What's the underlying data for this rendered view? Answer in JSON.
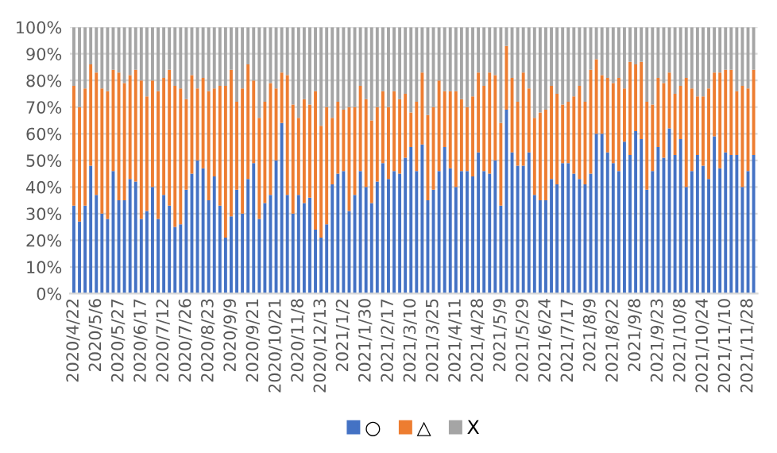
{
  "chart_data": {
    "type": "bar",
    "stacked": true,
    "categories": [
      "2020/4/22",
      null,
      null,
      null,
      "2020/5/6",
      null,
      null,
      null,
      "2020/5/27",
      null,
      null,
      null,
      "2020/6/17",
      null,
      null,
      null,
      "2020/7/12",
      null,
      null,
      null,
      "2020/7/26",
      null,
      null,
      null,
      "2020/8/23",
      null,
      null,
      null,
      "2020/9/9",
      null,
      null,
      null,
      "2020/9/21",
      null,
      null,
      null,
      "2020/10/21",
      null,
      null,
      null,
      "2020/11/8",
      null,
      null,
      null,
      "2020/12/13",
      null,
      null,
      null,
      "2021/1/2",
      null,
      null,
      null,
      "2021/1/30",
      null,
      null,
      null,
      "2021/2/17",
      null,
      null,
      null,
      "2021/3/10",
      null,
      null,
      null,
      "2021/3/25",
      null,
      null,
      null,
      "2021/4/11",
      null,
      null,
      null,
      "2021/4/28",
      null,
      null,
      null,
      "2021/5/9",
      null,
      null,
      null,
      "2021/5/29",
      null,
      null,
      null,
      "2021/6/24",
      null,
      null,
      null,
      "2021/7/17",
      null,
      null,
      null,
      "2021/8/9",
      null,
      null,
      null,
      "2021/8/22",
      null,
      null,
      null,
      "2021/9/8",
      null,
      null,
      null,
      "2021/9/23",
      null,
      null,
      null,
      "2021/10/8",
      null,
      null,
      null,
      "2021/10/24",
      null,
      null,
      null,
      "2021/11/10",
      null,
      null,
      null,
      "2021/11/28",
      null
    ],
    "series": [
      {
        "name": "○",
        "color": "#4472c4",
        "values": [
          33,
          27,
          33,
          48,
          37,
          30,
          28,
          46,
          35,
          35,
          43,
          42,
          28,
          31,
          40,
          28,
          37,
          33,
          25,
          26,
          39,
          45,
          50,
          47,
          35,
          44,
          33,
          21,
          29,
          39,
          30,
          43,
          49,
          28,
          34,
          37,
          50,
          64,
          37,
          30,
          37,
          34,
          36,
          24,
          21,
          26,
          41,
          45,
          46,
          31,
          37,
          46,
          40,
          34,
          42,
          49,
          43,
          46,
          45,
          51,
          55,
          46,
          56,
          35,
          39,
          46,
          55,
          47,
          40,
          46,
          46,
          44,
          53,
          46,
          45,
          50,
          33,
          69,
          53,
          48,
          48,
          53,
          37,
          35,
          35,
          43,
          41,
          49,
          49,
          45,
          43,
          41,
          45,
          60,
          60,
          53,
          49,
          46,
          57,
          52,
          61,
          58,
          39,
          46,
          55,
          51,
          62,
          52,
          58,
          40,
          46,
          52,
          48,
          43,
          59,
          47,
          53,
          52,
          52,
          40,
          46,
          52
        ]
      },
      {
        "name": "△",
        "color": "#ed7d31",
        "values": [
          45,
          43,
          44,
          38,
          46,
          47,
          48,
          38,
          48,
          44,
          39,
          42,
          52,
          43,
          40,
          48,
          44,
          51,
          53,
          51,
          34,
          37,
          27,
          34,
          41,
          33,
          45,
          57,
          55,
          33,
          47,
          43,
          31,
          38,
          38,
          42,
          27,
          19,
          45,
          41,
          29,
          39,
          35,
          52,
          42,
          44,
          25,
          27,
          23,
          39,
          33,
          32,
          33,
          31,
          28,
          27,
          27,
          30,
          28,
          24,
          13,
          26,
          27,
          32,
          31,
          34,
          21,
          29,
          36,
          27,
          24,
          30,
          30,
          32,
          38,
          32,
          31,
          24,
          28,
          24,
          35,
          24,
          29,
          33,
          34,
          35,
          34,
          22,
          23,
          29,
          35,
          31,
          39,
          28,
          22,
          28,
          30,
          35,
          20,
          35,
          25,
          29,
          33,
          25,
          26,
          28,
          21,
          23,
          20,
          41,
          31,
          22,
          26,
          34,
          24,
          36,
          31,
          32,
          24,
          38,
          31,
          32
        ]
      },
      {
        "name": "X",
        "color": "#a5a5a5",
        "values": [
          22,
          30,
          23,
          14,
          17,
          23,
          24,
          16,
          17,
          21,
          18,
          16,
          20,
          26,
          20,
          24,
          19,
          16,
          22,
          23,
          27,
          18,
          23,
          19,
          24,
          23,
          22,
          22,
          16,
          28,
          23,
          14,
          20,
          34,
          28,
          21,
          23,
          17,
          18,
          29,
          34,
          27,
          29,
          24,
          37,
          30,
          34,
          28,
          31,
          30,
          30,
          22,
          27,
          35,
          30,
          24,
          30,
          24,
          27,
          25,
          32,
          28,
          17,
          33,
          30,
          20,
          24,
          24,
          24,
          27,
          30,
          26,
          17,
          22,
          17,
          18,
          36,
          7,
          19,
          28,
          17,
          23,
          34,
          32,
          31,
          22,
          25,
          29,
          28,
          26,
          22,
          28,
          16,
          12,
          18,
          19,
          21,
          19,
          23,
          13,
          14,
          13,
          28,
          29,
          19,
          21,
          17,
          25,
          22,
          19,
          23,
          26,
          26,
          23,
          17,
          17,
          16,
          16,
          24,
          22,
          23,
          16
        ]
      }
    ],
    "ylim": [
      0,
      100
    ],
    "yticks": [
      {
        "value": 0,
        "label": "0%"
      },
      {
        "value": 10,
        "label": "10%"
      },
      {
        "value": 20,
        "label": "20%"
      },
      {
        "value": 30,
        "label": "30%"
      },
      {
        "value": 40,
        "label": "40%"
      },
      {
        "value": 50,
        "label": "50%"
      },
      {
        "value": 60,
        "label": "60%"
      },
      {
        "value": 70,
        "label": "70%"
      },
      {
        "value": 80,
        "label": "80%"
      },
      {
        "value": 90,
        "label": "90%"
      },
      {
        "value": 100,
        "label": "100%"
      }
    ],
    "grid": "y",
    "legend": "bottom"
  }
}
